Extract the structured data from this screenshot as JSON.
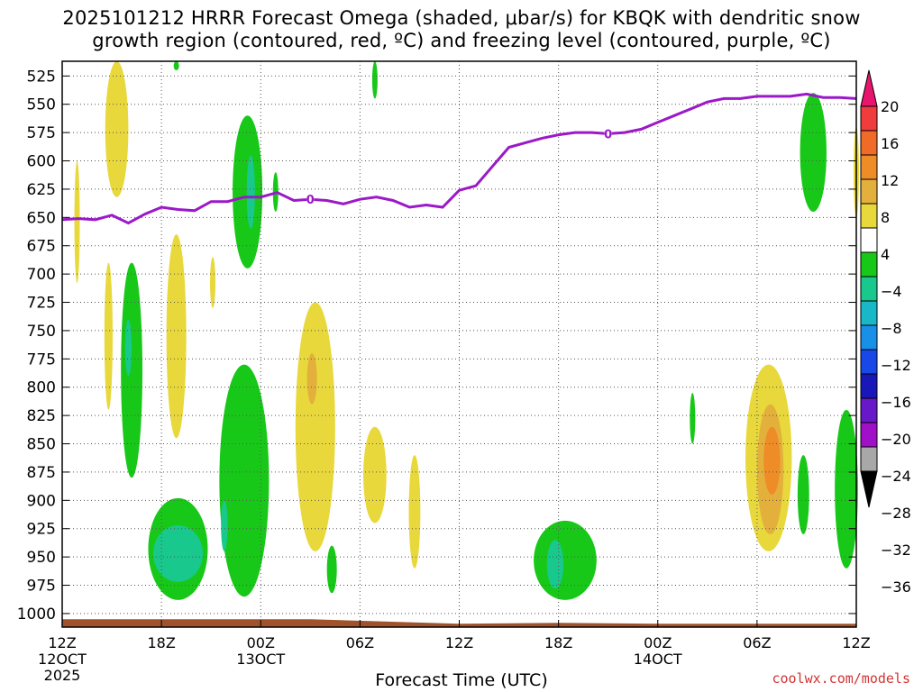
{
  "chart_data": {
    "type": "time-height-contour",
    "title_line1": "2025101212 HRRR Forecast Omega (shaded, μbar/s) for KBQK with dendritic snow",
    "title_line2": "growth region (contoured, red, ºC) and freezing level (contoured, purple, ºC)",
    "xlabel": "Forecast Time (UTC)",
    "credit": "coolwx.com/models",
    "x_hours": [
      0,
      6,
      12,
      18,
      24,
      30,
      36,
      42,
      48
    ],
    "x_tick_labels": [
      {
        "hour": 0,
        "lines": [
          "12Z",
          "12OCT",
          "2025"
        ]
      },
      {
        "hour": 6,
        "lines": [
          "18Z"
        ]
      },
      {
        "hour": 12,
        "lines": [
          "00Z",
          "13OCT"
        ]
      },
      {
        "hour": 18,
        "lines": [
          "06Z"
        ]
      },
      {
        "hour": 24,
        "lines": [
          "12Z"
        ]
      },
      {
        "hour": 30,
        "lines": [
          "18Z"
        ]
      },
      {
        "hour": 36,
        "lines": [
          "00Z",
          "14OCT"
        ]
      },
      {
        "hour": 42,
        "lines": [
          "06Z"
        ]
      },
      {
        "hour": 48,
        "lines": [
          "12Z"
        ]
      }
    ],
    "x_range": [
      0,
      48
    ],
    "y_levels_mb": [
      525,
      550,
      575,
      600,
      625,
      650,
      675,
      700,
      725,
      750,
      775,
      800,
      825,
      850,
      875,
      900,
      925,
      950,
      975,
      1000
    ],
    "y_range_mb": [
      512,
      1012
    ],
    "grid": true,
    "colorbar": {
      "labels": [
        "20",
        "16",
        "12",
        "8",
        "4",
        "−4",
        "−8",
        "−12",
        "−16",
        "−20",
        "−24",
        "−28",
        "−32",
        "−36"
      ],
      "colors": [
        "#e8156e",
        "#f03c3c",
        "#f06a28",
        "#ee8c28",
        "#e4b03c",
        "#e8d83c",
        "#ffffff",
        "#18c818",
        "#18c88c",
        "#18b8c8",
        "#1890e8",
        "#1848e8",
        "#1818b8",
        "#6818c8",
        "#a010c8",
        "#a8a8a8",
        "#000000"
      ]
    },
    "freezing_level": {
      "label": "0",
      "label_hours": [
        15,
        33
      ],
      "hours": [
        0,
        1,
        2,
        3,
        4,
        5,
        6,
        7,
        8,
        9,
        10,
        11,
        12,
        13,
        14,
        15,
        16,
        17,
        18,
        19,
        20,
        21,
        22,
        23,
        24,
        25,
        26,
        27,
        28,
        29,
        30,
        31,
        32,
        33,
        34,
        35,
        36,
        37,
        38,
        39,
        40,
        41,
        42,
        43,
        44,
        45,
        46,
        47,
        48
      ],
      "pressure_mb": [
        652,
        651,
        652,
        648,
        655,
        647,
        641,
        643,
        644,
        636,
        636,
        632,
        632,
        628,
        635,
        634,
        635,
        638,
        634,
        632,
        635,
        641,
        639,
        641,
        626,
        622,
        605,
        588,
        584,
        580,
        577,
        575,
        575,
        576,
        575,
        572,
        566,
        560,
        554,
        548,
        545,
        545,
        543,
        543,
        543,
        541,
        544,
        544,
        545
      ]
    },
    "omega_regions": [
      {
        "category": "4 to 8",
        "color": "#e8d83c",
        "hour": 3.3,
        "p_top": 512,
        "p_bottom": 632,
        "half_width_h": 0.7
      },
      {
        "category": "4 to 8",
        "color": "#e8d83c",
        "hour": 0.9,
        "p_top": 600,
        "p_bottom": 708,
        "half_width_h": 0.15
      },
      {
        "category": "4 to 8",
        "color": "#e8d83c",
        "hour": 2.8,
        "p_top": 690,
        "p_bottom": 820,
        "half_width_h": 0.25
      },
      {
        "category": "4 to 8",
        "color": "#e8d83c",
        "hour": 6.9,
        "p_top": 665,
        "p_bottom": 845,
        "half_width_h": 0.6
      },
      {
        "category": "4 to 8",
        "color": "#e8d83c",
        "hour": 9.1,
        "p_top": 685,
        "p_bottom": 730,
        "half_width_h": 0.15
      },
      {
        "category": "4 to 8",
        "color": "#e8d83c",
        "hour": 15.3,
        "p_top": 725,
        "p_bottom": 945,
        "half_width_h": 1.2
      },
      {
        "category": "8 to 12",
        "color": "#e4b03c",
        "hour": 15.1,
        "p_top": 770,
        "p_bottom": 815,
        "half_width_h": 0.3
      },
      {
        "category": "4 to 8",
        "color": "#e8d83c",
        "hour": 18.9,
        "p_top": 835,
        "p_bottom": 920,
        "half_width_h": 0.7
      },
      {
        "category": "4 to 8",
        "color": "#e8d83c",
        "hour": 21.3,
        "p_top": 860,
        "p_bottom": 960,
        "half_width_h": 0.35
      },
      {
        "category": "4 to 8",
        "color": "#e8d83c",
        "hour": 42.7,
        "p_top": 780,
        "p_bottom": 945,
        "half_width_h": 1.4
      },
      {
        "category": "8 to 12",
        "color": "#e4b03c",
        "hour": 42.8,
        "p_top": 815,
        "p_bottom": 930,
        "half_width_h": 0.8
      },
      {
        "category": "12 to 16",
        "color": "#ee8c28",
        "hour": 42.9,
        "p_top": 835,
        "p_bottom": 895,
        "half_width_h": 0.5
      },
      {
        "category": "4 to 8",
        "color": "#e8d83c",
        "hour": 48,
        "p_top": 570,
        "p_bottom": 650,
        "half_width_h": 0.15
      },
      {
        "category": "-4 to -8",
        "color": "#18c818",
        "hour": 4.2,
        "p_top": 690,
        "p_bottom": 880,
        "half_width_h": 0.65
      },
      {
        "category": "-8 to -12",
        "color": "#18c88c",
        "hour": 4.0,
        "p_top": 740,
        "p_bottom": 790,
        "half_width_h": 0.2
      },
      {
        "category": "-4 to -8",
        "color": "#18c818",
        "hour": 11.2,
        "p_top": 560,
        "p_bottom": 695,
        "half_width_h": 0.9
      },
      {
        "category": "-8 to -12",
        "color": "#18c88c",
        "hour": 11.4,
        "p_top": 595,
        "p_bottom": 660,
        "half_width_h": 0.25
      },
      {
        "category": "-4 to -8",
        "color": "#18c818",
        "hour": 11.0,
        "p_top": 780,
        "p_bottom": 985,
        "half_width_h": 1.5
      },
      {
        "category": "-8 to -12",
        "color": "#18c88c",
        "hour": 9.8,
        "p_top": 900,
        "p_bottom": 945,
        "half_width_h": 0.2
      },
      {
        "category": "-4 to -8",
        "color": "#18c818",
        "hour": 16.3,
        "p_top": 940,
        "p_bottom": 982,
        "half_width_h": 0.3
      },
      {
        "category": "-4 to -8",
        "color": "#18c818",
        "hour": 7.0,
        "p_top": 898,
        "p_bottom": 988,
        "half_width_h": 1.8
      },
      {
        "category": "-8 to -12",
        "color": "#18c88c",
        "hour": 7.0,
        "p_top": 922,
        "p_bottom": 972,
        "half_width_h": 1.5
      },
      {
        "category": "-4 to -8",
        "color": "#18c818",
        "hour": 30.4,
        "p_top": 918,
        "p_bottom": 988,
        "half_width_h": 1.9
      },
      {
        "category": "-8 to -12",
        "color": "#18c88c",
        "hour": 29.8,
        "p_top": 935,
        "p_bottom": 978,
        "half_width_h": 0.5
      },
      {
        "category": "-4 to -8",
        "color": "#18c818",
        "hour": 45.4,
        "p_top": 540,
        "p_bottom": 645,
        "half_width_h": 0.8
      },
      {
        "category": "-4 to -8",
        "color": "#18c818",
        "hour": 44.8,
        "p_top": 860,
        "p_bottom": 930,
        "half_width_h": 0.35
      },
      {
        "category": "-4 to -8",
        "color": "#18c818",
        "hour": 47.4,
        "p_top": 820,
        "p_bottom": 960,
        "half_width_h": 0.7
      },
      {
        "category": "-4 to -8",
        "color": "#18c818",
        "hour": 12.9,
        "p_top": 610,
        "p_bottom": 645,
        "half_width_h": 0.08
      },
      {
        "category": "-4 to -8",
        "color": "#18c818",
        "hour": 38.1,
        "p_top": 805,
        "p_bottom": 850,
        "half_width_h": 0.1
      },
      {
        "category": "-4 to -8",
        "color": "#18c818",
        "hour": 18.9,
        "p_top": 512,
        "p_bottom": 545,
        "half_width_h": 0.12
      },
      {
        "category": "-4 to -8",
        "color": "#18c818",
        "hour": 6.9,
        "p_top": 512,
        "p_bottom": 520,
        "half_width_h": 0.06
      }
    ],
    "terrain": {
      "color": "#a0522d",
      "label": "ground"
    }
  }
}
